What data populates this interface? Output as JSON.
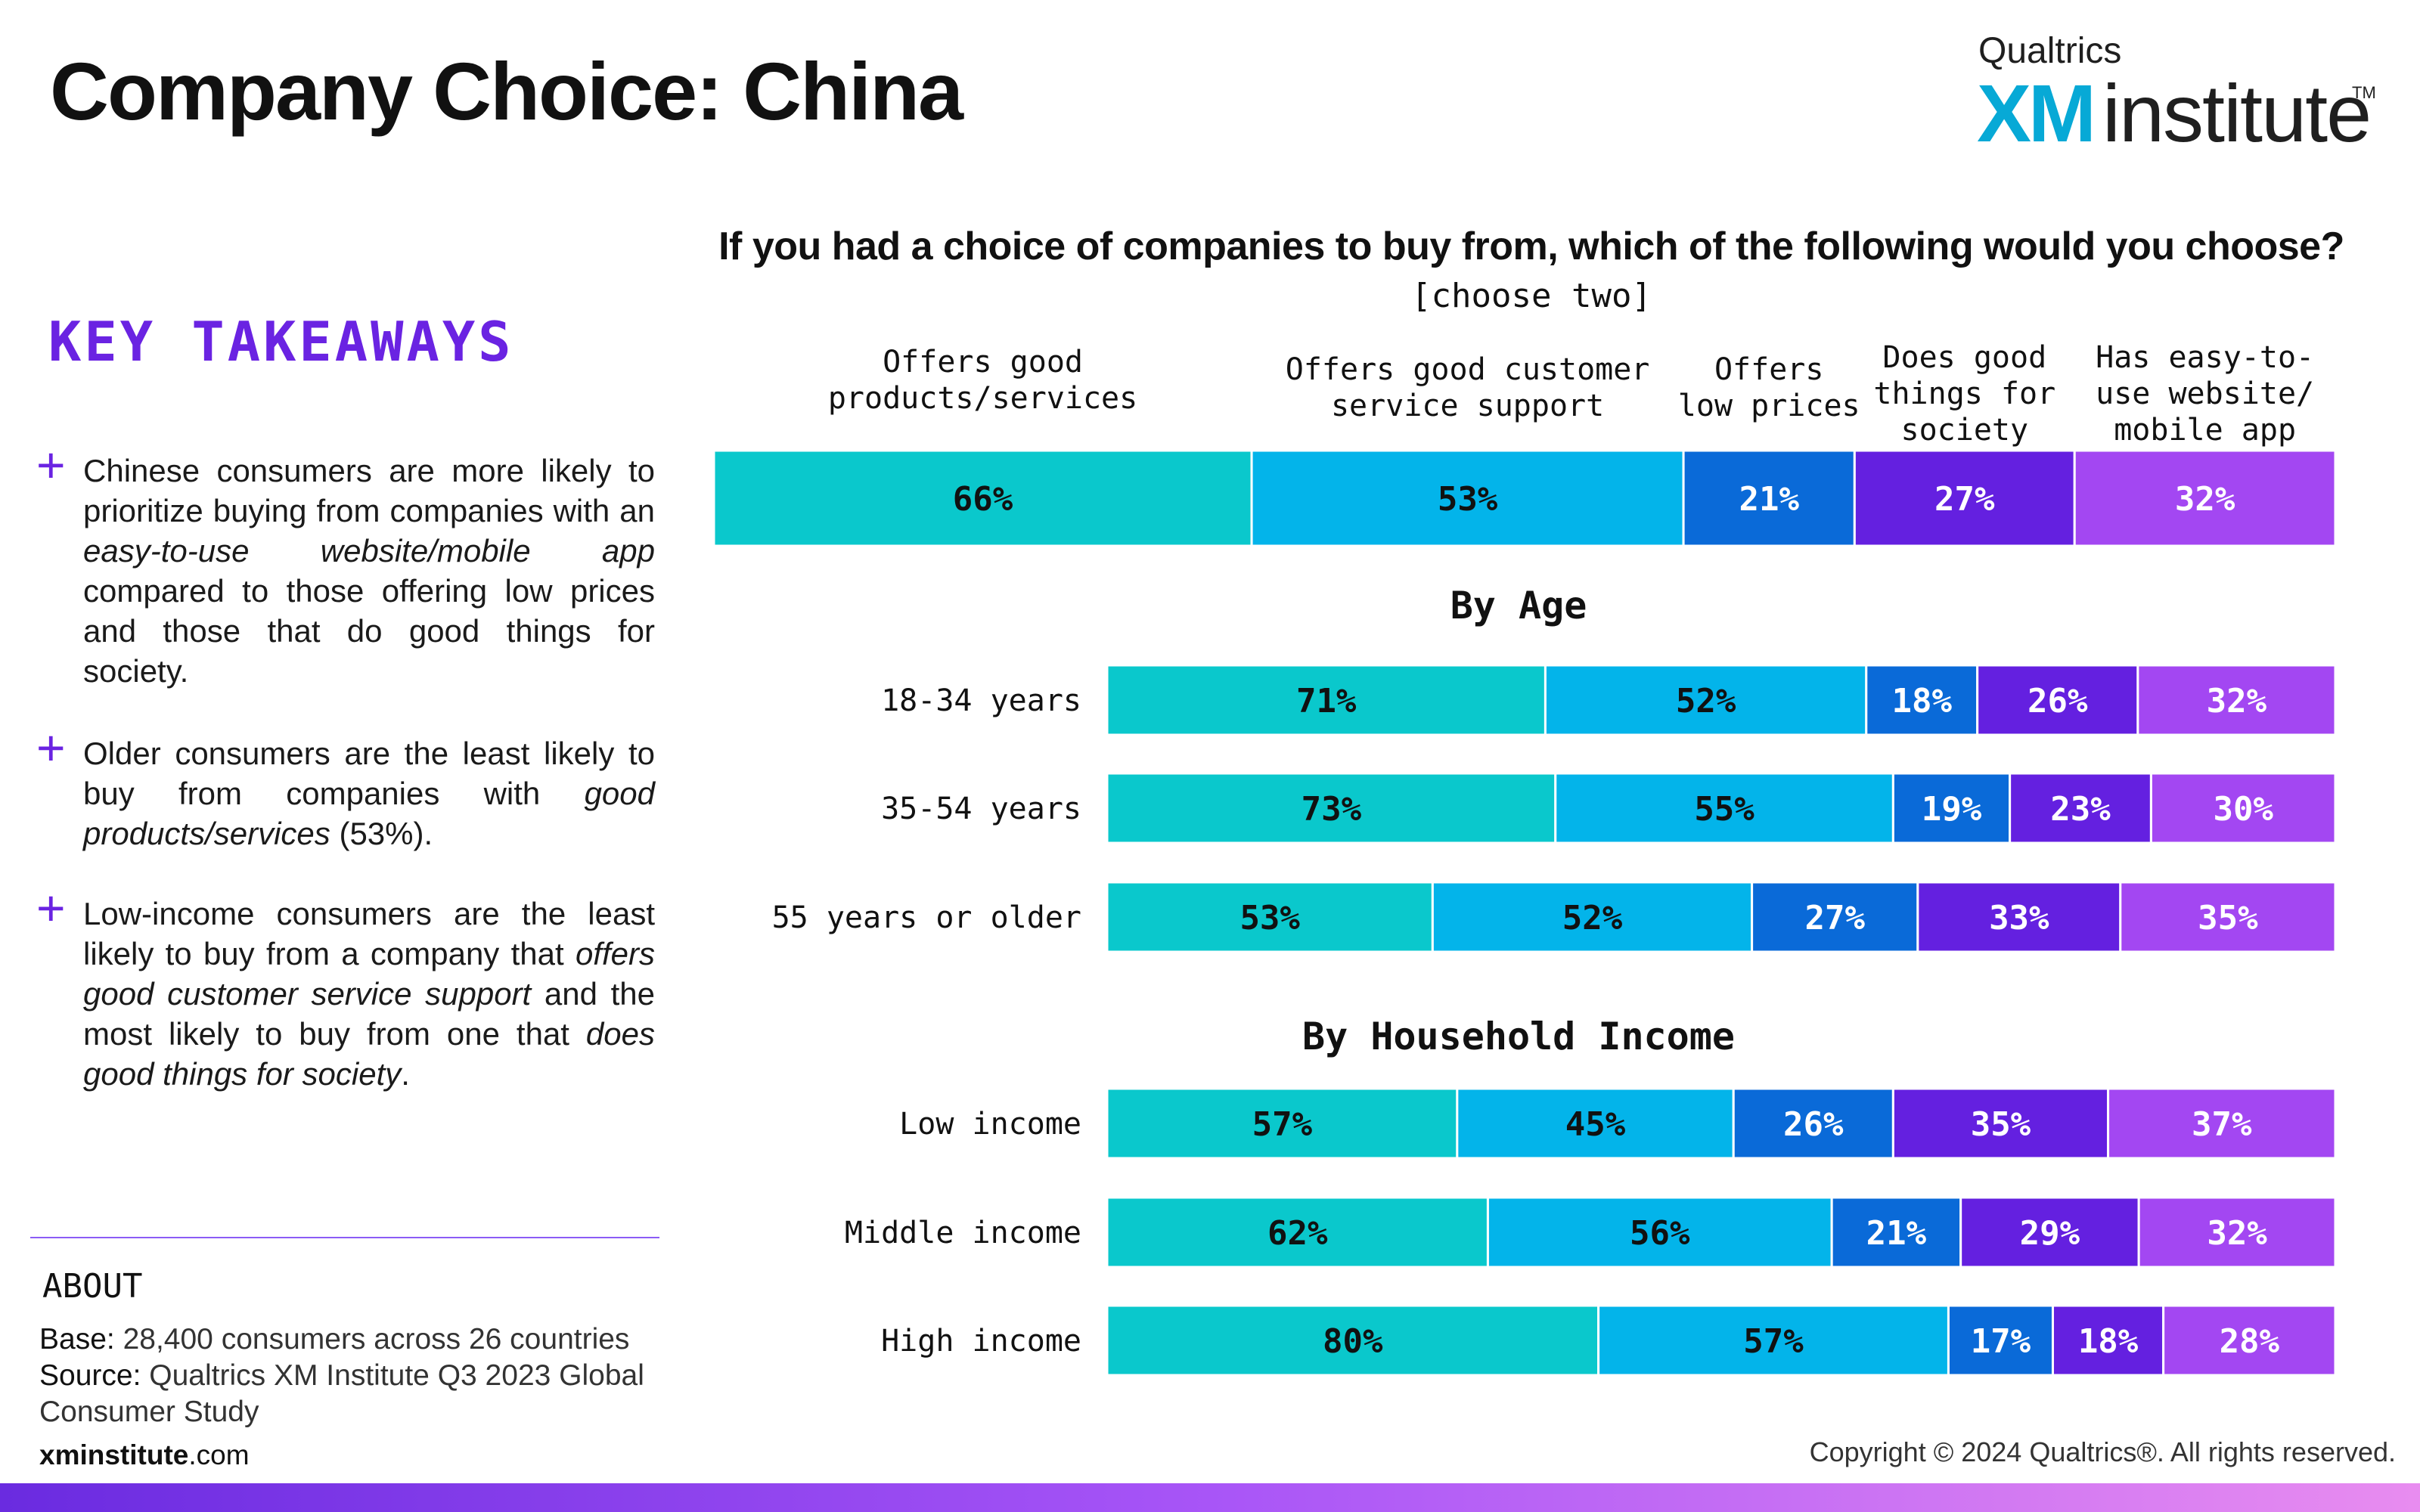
{
  "header": {
    "title": "Company Choice: China",
    "logo_top": "Qualtrics",
    "logo_xm": "XM",
    "logo_institute": "institute",
    "logo_tm": "TM"
  },
  "takeaways": {
    "heading": "KEY TAKEAWAYS",
    "plus_symbol": "+",
    "items": [
      "Chinese consumers are more likely to prioritize buying from companies with an easy-to-use website/mobile app compared to those offering low prices and those that do good things for society.",
      "Older consumers are the least likely to buy from companies with good products/services (53%).",
      "Low-income consumers are the least likely to buy from a company that offers good customer service support and the most likely to buy from one that does good things for society."
    ]
  },
  "about": {
    "heading": "ABOUT",
    "base_label": "Base:",
    "base_text": "28,400 consumers across 26 countries",
    "source_label": "Source:",
    "source_text_1": "Qualtrics XM Institute Q3 2023 Global",
    "source_text_2": "Consumer Study"
  },
  "footer": {
    "site_bold": "xminstitute",
    "site_rest": ".com",
    "copyright": "Copyright © 2024 Qualtrics®. All rights reserved."
  },
  "colors": {
    "series": [
      "#0ac8cc",
      "#03b4ea",
      "#0a6ad8",
      "#6420e0",
      "#a347f2"
    ],
    "label_dark": "#111111",
    "label_light": "#ffffff",
    "accent": "#6a23e2"
  },
  "chart_data": {
    "type": "bar",
    "orientation": "horizontal-stacked",
    "title": "If you had a choice of companies to buy from, which of the following would you choose?",
    "subtitle": "[choose two]",
    "series_names": [
      [
        "Offers good",
        "products/services"
      ],
      [
        "Offers good customer",
        "service support"
      ],
      [
        "Offers",
        "low prices"
      ],
      [
        "Does good",
        "things for",
        "society"
      ],
      [
        "Has easy-to-",
        "use website/",
        "mobile app"
      ]
    ],
    "overall": {
      "label": "",
      "values": [
        66,
        53,
        21,
        27,
        32
      ]
    },
    "groups": [
      {
        "title": "By Age",
        "rows": [
          {
            "label": "18-34 years",
            "values": [
              71,
              52,
              18,
              26,
              32
            ]
          },
          {
            "label": "35-54 years",
            "values": [
              73,
              55,
              19,
              23,
              30
            ]
          },
          {
            "label": "55 years or older",
            "values": [
              53,
              52,
              27,
              33,
              35
            ]
          }
        ]
      },
      {
        "title": "By Household Income",
        "rows": [
          {
            "label": "Low income",
            "values": [
              57,
              45,
              26,
              35,
              37
            ]
          },
          {
            "label": "Middle income",
            "values": [
              62,
              56,
              21,
              29,
              32
            ]
          },
          {
            "label": "High income",
            "values": [
              80,
              57,
              17,
              18,
              28
            ]
          }
        ]
      }
    ],
    "value_suffix": "%"
  }
}
